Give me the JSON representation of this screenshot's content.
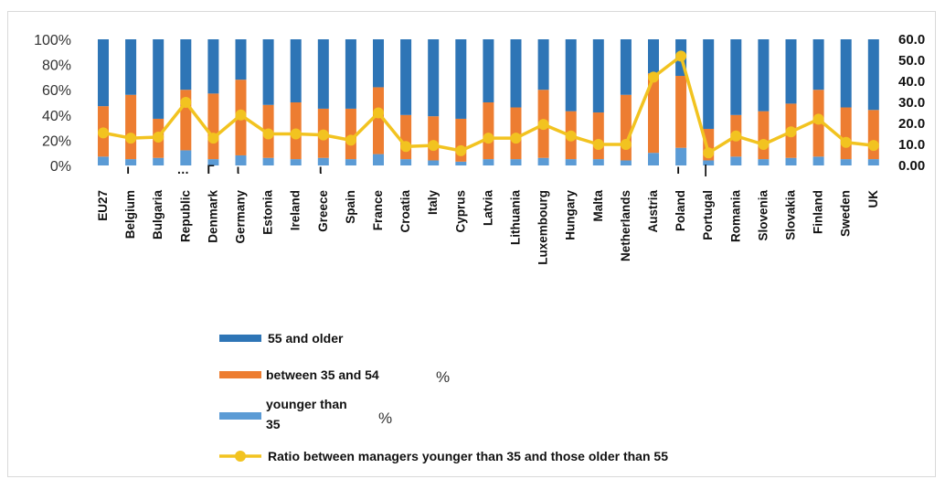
{
  "chart_data": {
    "type": "bar",
    "stacked": true,
    "normalized_percent": true,
    "categories": [
      "EU27",
      "Belgium",
      "Bulgaria",
      "Republic",
      "Denmark",
      "Germany",
      "Estonia",
      "Ireland",
      "Greece",
      "Spain",
      "France",
      "Croatia",
      "Italy",
      "Cyprus",
      "Latvia",
      "Lithuania",
      "Luxembourg",
      "Hungary",
      "Malta",
      "Netherlands",
      "Austria",
      "Poland",
      "Portugal",
      "Romania",
      "Slovenia",
      "Slovakia",
      "Finland",
      "Sweden",
      "UK"
    ],
    "series": [
      {
        "name": "younger than 35",
        "legend_line1": "younger than",
        "legend_line2": "35",
        "unit": "%",
        "color": "#5b9bd5",
        "values": [
          7,
          5,
          6,
          12,
          5,
          8,
          6,
          5,
          6,
          5,
          9,
          5,
          4,
          3,
          5,
          5,
          6,
          5,
          5,
          4,
          10,
          14,
          4,
          7,
          5,
          6,
          7,
          5,
          5
        ]
      },
      {
        "name": "between 35 and 54",
        "unit": "%",
        "color": "#ed7d31",
        "values": [
          40,
          51,
          31,
          48,
          52,
          60,
          42,
          45,
          39,
          40,
          53,
          35,
          35,
          34,
          45,
          41,
          54,
          38,
          37,
          52,
          63,
          57,
          25,
          33,
          38,
          43,
          53,
          41,
          39
        ]
      },
      {
        "name": "55 and older",
        "color": "#2e75b6",
        "values": [
          53,
          44,
          63,
          40,
          43,
          32,
          52,
          50,
          55,
          55,
          38,
          60,
          61,
          63,
          50,
          54,
          40,
          57,
          58,
          44,
          27,
          29,
          71,
          60,
          57,
          51,
          40,
          54,
          56
        ]
      },
      {
        "name": "Ratio between managers younger than 35 and those older than 55",
        "type": "line",
        "axis": "right",
        "color": "#f2c320",
        "values": [
          15.5,
          13.0,
          13.5,
          30.0,
          13.0,
          24.0,
          15.0,
          15.0,
          14.5,
          12.0,
          25.0,
          9.0,
          9.5,
          7.0,
          13.0,
          13.0,
          19.5,
          14.0,
          10.0,
          10.0,
          42.0,
          52.0,
          6.0,
          14.0,
          10.0,
          16.0,
          22.0,
          11.0,
          9.5
        ]
      }
    ],
    "y_left": {
      "ticks": [
        "0%",
        "20%",
        "40%",
        "60%",
        "80%",
        "100%"
      ],
      "ylim": [
        0,
        100
      ]
    },
    "y_right": {
      "ticks": [
        "0.00",
        "10.0",
        "20.0",
        "30.0",
        "40.0",
        "50.0",
        "60.0"
      ],
      "ylim": [
        0,
        60
      ]
    },
    "stray_marks": {
      "Republic": "…",
      "Denmark": "Γ",
      "Germany": "ι",
      "Greece": "ι",
      "Portugal": "|",
      "Poland": "ı",
      "Belgium": "ı"
    },
    "legend_position": "bottom-left",
    "grid": false
  }
}
